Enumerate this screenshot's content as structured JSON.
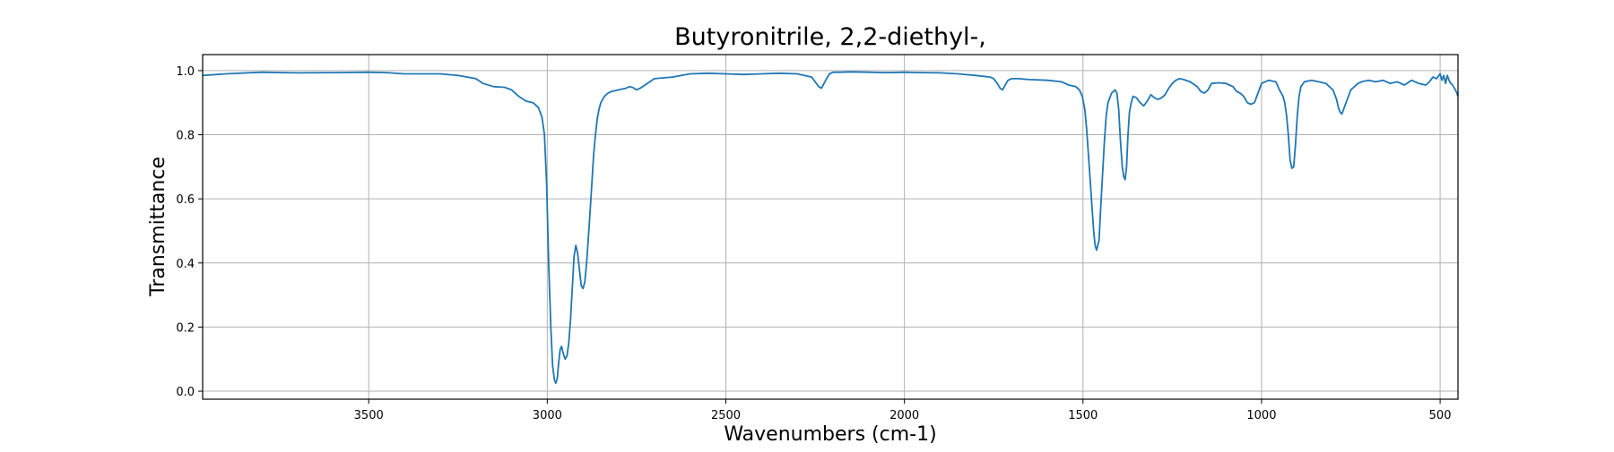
{
  "chart_data": {
    "type": "line",
    "title": "Butyronitrile, 2,2-diethyl-,",
    "xlabel": "Wavenumbers (cm-1)",
    "ylabel": "Transmittance",
    "xlim": [
      3965,
      450
    ],
    "ylim": [
      -0.025,
      1.05
    ],
    "x_reversed": true,
    "grid": true,
    "xticks": [
      3500,
      3000,
      2500,
      2000,
      1500,
      1000,
      500
    ],
    "yticks": [
      0.0,
      0.2,
      0.4,
      0.6,
      0.8,
      1.0
    ],
    "ytick_labels": [
      "0.0",
      "0.2",
      "0.4",
      "0.6",
      "0.8",
      "1.0"
    ],
    "line_color": "#1f77b4",
    "series": [
      {
        "x": [
          3965,
          3900,
          3800,
          3700,
          3600,
          3500,
          3450,
          3400,
          3300,
          3250,
          3200,
          3180,
          3150,
          3120,
          3100,
          3080,
          3060,
          3040,
          3025,
          3015,
          3008,
          3002,
          2996,
          2990,
          2985,
          2980,
          2976,
          2972,
          2968,
          2964,
          2960,
          2956,
          2950,
          2945,
          2940,
          2935,
          2930,
          2925,
          2920,
          2915,
          2910,
          2905,
          2900,
          2895,
          2890,
          2885,
          2880,
          2875,
          2870,
          2865,
          2860,
          2855,
          2850,
          2840,
          2830,
          2820,
          2800,
          2780,
          2770,
          2760,
          2750,
          2740,
          2720,
          2700,
          2650,
          2600,
          2550,
          2500,
          2450,
          2400,
          2350,
          2300,
          2260,
          2250,
          2240,
          2232,
          2225,
          2218,
          2210,
          2200,
          2180,
          2150,
          2100,
          2050,
          2000,
          1950,
          1900,
          1850,
          1800,
          1760,
          1750,
          1740,
          1732,
          1725,
          1718,
          1710,
          1700,
          1680,
          1650,
          1600,
          1560,
          1540,
          1520,
          1510,
          1502,
          1495,
          1490,
          1485,
          1480,
          1475,
          1470,
          1466,
          1462,
          1455,
          1450,
          1445,
          1440,
          1435,
          1430,
          1420,
          1410,
          1405,
          1400,
          1395,
          1390,
          1386,
          1382,
          1378,
          1374,
          1370,
          1365,
          1360,
          1350,
          1340,
          1330,
          1320,
          1310,
          1300,
          1290,
          1280,
          1270,
          1260,
          1250,
          1240,
          1230,
          1220,
          1200,
          1180,
          1170,
          1160,
          1150,
          1140,
          1120,
          1100,
          1090,
          1080,
          1070,
          1060,
          1050,
          1040,
          1030,
          1020,
          1010,
          1000,
          980,
          960,
          950,
          940,
          935,
          930,
          925,
          920,
          915,
          910,
          905,
          900,
          895,
          890,
          880,
          860,
          840,
          820,
          800,
          790,
          785,
          780,
          775,
          770,
          760,
          750,
          740,
          730,
          720,
          700,
          680,
          660,
          640,
          620,
          600,
          580,
          560,
          540,
          530,
          520,
          510,
          500,
          495,
          490,
          485,
          480,
          475,
          470,
          465,
          460,
          455,
          450
        ],
        "y": [
          0.985,
          0.99,
          0.995,
          0.993,
          0.994,
          0.995,
          0.994,
          0.99,
          0.99,
          0.985,
          0.975,
          0.96,
          0.95,
          0.948,
          0.94,
          0.92,
          0.905,
          0.9,
          0.885,
          0.855,
          0.8,
          0.65,
          0.4,
          0.2,
          0.08,
          0.035,
          0.025,
          0.04,
          0.09,
          0.13,
          0.14,
          0.12,
          0.1,
          0.11,
          0.15,
          0.22,
          0.32,
          0.42,
          0.455,
          0.43,
          0.38,
          0.33,
          0.32,
          0.34,
          0.4,
          0.48,
          0.56,
          0.65,
          0.74,
          0.8,
          0.85,
          0.88,
          0.9,
          0.92,
          0.93,
          0.935,
          0.94,
          0.945,
          0.95,
          0.947,
          0.94,
          0.945,
          0.96,
          0.975,
          0.98,
          0.99,
          0.992,
          0.99,
          0.988,
          0.99,
          0.992,
          0.99,
          0.98,
          0.965,
          0.95,
          0.945,
          0.96,
          0.975,
          0.99,
          0.995,
          0.995,
          0.996,
          0.995,
          0.994,
          0.995,
          0.994,
          0.993,
          0.99,
          0.985,
          0.98,
          0.975,
          0.96,
          0.945,
          0.94,
          0.955,
          0.97,
          0.975,
          0.975,
          0.972,
          0.97,
          0.965,
          0.955,
          0.95,
          0.94,
          0.92,
          0.88,
          0.82,
          0.74,
          0.66,
          0.58,
          0.5,
          0.455,
          0.44,
          0.47,
          0.58,
          0.68,
          0.78,
          0.86,
          0.9,
          0.93,
          0.94,
          0.93,
          0.88,
          0.78,
          0.7,
          0.67,
          0.66,
          0.7,
          0.8,
          0.87,
          0.9,
          0.92,
          0.915,
          0.9,
          0.89,
          0.905,
          0.925,
          0.915,
          0.91,
          0.915,
          0.925,
          0.945,
          0.96,
          0.97,
          0.975,
          0.973,
          0.965,
          0.95,
          0.935,
          0.93,
          0.94,
          0.96,
          0.962,
          0.96,
          0.955,
          0.95,
          0.935,
          0.93,
          0.92,
          0.9,
          0.895,
          0.9,
          0.93,
          0.96,
          0.97,
          0.965,
          0.94,
          0.92,
          0.9,
          0.86,
          0.8,
          0.72,
          0.695,
          0.7,
          0.77,
          0.86,
          0.92,
          0.95,
          0.965,
          0.97,
          0.965,
          0.96,
          0.94,
          0.91,
          0.885,
          0.87,
          0.865,
          0.88,
          0.91,
          0.94,
          0.95,
          0.96,
          0.965,
          0.97,
          0.965,
          0.97,
          0.96,
          0.965,
          0.955,
          0.97,
          0.96,
          0.955,
          0.965,
          0.98,
          0.975,
          0.99,
          0.97,
          0.985,
          0.96,
          0.985,
          0.97,
          0.96,
          0.955,
          0.945,
          0.935,
          0.92
        ]
      }
    ]
  }
}
